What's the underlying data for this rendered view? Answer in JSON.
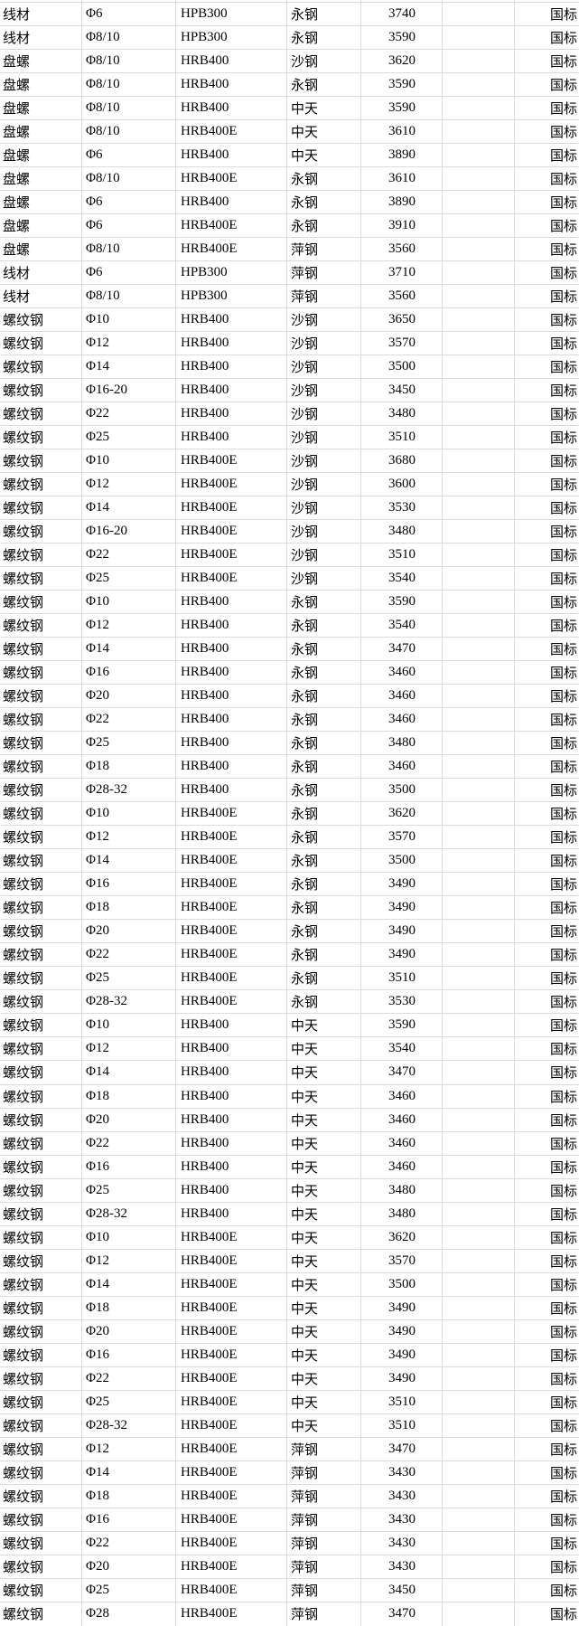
{
  "colors": {
    "background": "#ffffff",
    "gridline": "#dcdcdc",
    "text": "#000000"
  },
  "table": {
    "rows": [
      [
        "线材",
        "Φ6",
        "HPB300",
        "永钢",
        "3740",
        "",
        "国标"
      ],
      [
        "线材",
        "Φ8/10",
        "HPB300",
        "永钢",
        "3590",
        "",
        "国标"
      ],
      [
        "盘螺",
        "Φ8/10",
        "HRB400",
        "沙钢",
        "3620",
        "",
        "国标"
      ],
      [
        "盘螺",
        "Φ8/10",
        "HRB400",
        "永钢",
        "3590",
        "",
        "国标"
      ],
      [
        "盘螺",
        "Φ8/10",
        "HRB400",
        "中天",
        "3590",
        "",
        "国标"
      ],
      [
        "盘螺",
        "Φ8/10",
        "HRB400E",
        "中天",
        "3610",
        "",
        "国标"
      ],
      [
        "盘螺",
        "Φ6",
        "HRB400",
        "中天",
        "3890",
        "",
        "国标"
      ],
      [
        "盘螺",
        "Φ8/10",
        "HRB400E",
        "永钢",
        "3610",
        "",
        "国标"
      ],
      [
        "盘螺",
        "Φ6",
        "HRB400",
        "永钢",
        "3890",
        "",
        "国标"
      ],
      [
        "盘螺",
        "Φ6",
        "HRB400E",
        "永钢",
        "3910",
        "",
        "国标"
      ],
      [
        "盘螺",
        "Φ8/10",
        "HRB400E",
        "萍钢",
        "3560",
        "",
        "国标"
      ],
      [
        "线材",
        "Φ6",
        "HPB300",
        "萍钢",
        "3710",
        "",
        "国标"
      ],
      [
        "线材",
        "Φ8/10",
        "HPB300",
        "萍钢",
        "3560",
        "",
        "国标"
      ],
      [
        "螺纹钢",
        "Φ10",
        "HRB400",
        "沙钢",
        "3650",
        "",
        "国标"
      ],
      [
        "螺纹钢",
        "Φ12",
        "HRB400",
        "沙钢",
        "3570",
        "",
        "国标"
      ],
      [
        "螺纹钢",
        "Φ14",
        "HRB400",
        "沙钢",
        "3500",
        "",
        "国标"
      ],
      [
        "螺纹钢",
        "Φ16-20",
        "HRB400",
        "沙钢",
        "3450",
        "",
        "国标"
      ],
      [
        "螺纹钢",
        "Φ22",
        "HRB400",
        "沙钢",
        "3480",
        "",
        "国标"
      ],
      [
        "螺纹钢",
        "Φ25",
        "HRB400",
        "沙钢",
        "3510",
        "",
        "国标"
      ],
      [
        "螺纹钢",
        "Φ10",
        "HRB400E",
        "沙钢",
        "3680",
        "",
        "国标"
      ],
      [
        "螺纹钢",
        "Φ12",
        "HRB400E",
        "沙钢",
        "3600",
        "",
        "国标"
      ],
      [
        "螺纹钢",
        "Φ14",
        "HRB400E",
        "沙钢",
        "3530",
        "",
        "国标"
      ],
      [
        "螺纹钢",
        "Φ16-20",
        "HRB400E",
        "沙钢",
        "3480",
        "",
        "国标"
      ],
      [
        "螺纹钢",
        "Φ22",
        "HRB400E",
        "沙钢",
        "3510",
        "",
        "国标"
      ],
      [
        "螺纹钢",
        "Φ25",
        "HRB400E",
        "沙钢",
        "3540",
        "",
        "国标"
      ],
      [
        "螺纹钢",
        "Φ10",
        "HRB400",
        "永钢",
        "3590",
        "",
        "国标"
      ],
      [
        "螺纹钢",
        "Φ12",
        "HRB400",
        "永钢",
        "3540",
        "",
        "国标"
      ],
      [
        "螺纹钢",
        "Φ14",
        "HRB400",
        "永钢",
        "3470",
        "",
        "国标"
      ],
      [
        "螺纹钢",
        "Φ16",
        "HRB400",
        "永钢",
        "3460",
        "",
        "国标"
      ],
      [
        "螺纹钢",
        "Φ20",
        "HRB400",
        "永钢",
        "3460",
        "",
        "国标"
      ],
      [
        "螺纹钢",
        "Φ22",
        "HRB400",
        "永钢",
        "3460",
        "",
        "国标"
      ],
      [
        "螺纹钢",
        "Φ25",
        "HRB400",
        "永钢",
        "3480",
        "",
        "国标"
      ],
      [
        "螺纹钢",
        "Φ18",
        "HRB400",
        "永钢",
        "3460",
        "",
        "国标"
      ],
      [
        "螺纹钢",
        "Φ28-32",
        "HRB400",
        "永钢",
        "3500",
        "",
        "国标"
      ],
      [
        "螺纹钢",
        "Φ10",
        "HRB400E",
        "永钢",
        "3620",
        "",
        "国标"
      ],
      [
        "螺纹钢",
        "Φ12",
        "HRB400E",
        "永钢",
        "3570",
        "",
        "国标"
      ],
      [
        "螺纹钢",
        "Φ14",
        "HRB400E",
        "永钢",
        "3500",
        "",
        "国标"
      ],
      [
        "螺纹钢",
        "Φ16",
        "HRB400E",
        "永钢",
        "3490",
        "",
        "国标"
      ],
      [
        "螺纹钢",
        "Φ18",
        "HRB400E",
        "永钢",
        "3490",
        "",
        "国标"
      ],
      [
        "螺纹钢",
        "Φ20",
        "HRB400E",
        "永钢",
        "3490",
        "",
        "国标"
      ],
      [
        "螺纹钢",
        "Φ22",
        "HRB400E",
        "永钢",
        "3490",
        "",
        "国标"
      ],
      [
        "螺纹钢",
        "Φ25",
        "HRB400E",
        "永钢",
        "3510",
        "",
        "国标"
      ],
      [
        "螺纹钢",
        "Φ28-32",
        "HRB400E",
        "永钢",
        "3530",
        "",
        "国标"
      ],
      [
        "螺纹钢",
        "Φ10",
        "HRB400",
        "中天",
        "3590",
        "",
        "国标"
      ],
      [
        "螺纹钢",
        "Φ12",
        "HRB400",
        "中天",
        "3540",
        "",
        "国标"
      ],
      [
        "螺纹钢",
        "Φ14",
        "HRB400",
        "中天",
        "3470",
        "",
        "国标"
      ],
      [
        "螺纹钢",
        "Φ18",
        "HRB400",
        "中天",
        "3460",
        "",
        "国标"
      ],
      [
        "螺纹钢",
        "Φ20",
        "HRB400",
        "中天",
        "3460",
        "",
        "国标"
      ],
      [
        "螺纹钢",
        "Φ22",
        "HRB400",
        "中天",
        "3460",
        "",
        "国标"
      ],
      [
        "螺纹钢",
        "Φ16",
        "HRB400",
        "中天",
        "3460",
        "",
        "国标"
      ],
      [
        "螺纹钢",
        "Φ25",
        "HRB400",
        "中天",
        "3480",
        "",
        "国标"
      ],
      [
        "螺纹钢",
        "Φ28-32",
        "HRB400",
        "中天",
        "3480",
        "",
        "国标"
      ],
      [
        "螺纹钢",
        "Φ10",
        "HRB400E",
        "中天",
        "3620",
        "",
        "国标"
      ],
      [
        "螺纹钢",
        "Φ12",
        "HRB400E",
        "中天",
        "3570",
        "",
        "国标"
      ],
      [
        "螺纹钢",
        "Φ14",
        "HRB400E",
        "中天",
        "3500",
        "",
        "国标"
      ],
      [
        "螺纹钢",
        "Φ18",
        "HRB400E",
        "中天",
        "3490",
        "",
        "国标"
      ],
      [
        "螺纹钢",
        "Φ20",
        "HRB400E",
        "中天",
        "3490",
        "",
        "国标"
      ],
      [
        "螺纹钢",
        "Φ16",
        "HRB400E",
        "中天",
        "3490",
        "",
        "国标"
      ],
      [
        "螺纹钢",
        "Φ22",
        "HRB400E",
        "中天",
        "3490",
        "",
        "国标"
      ],
      [
        "螺纹钢",
        "Φ25",
        "HRB400E",
        "中天",
        "3510",
        "",
        "国标"
      ],
      [
        "螺纹钢",
        "Φ28-32",
        "HRB400E",
        "中天",
        "3510",
        "",
        "国标"
      ],
      [
        "螺纹钢",
        "Φ12",
        "HRB400E",
        "萍钢",
        "3470",
        "",
        "国标"
      ],
      [
        "螺纹钢",
        "Φ14",
        "HRB400E",
        "萍钢",
        "3430",
        "",
        "国标"
      ],
      [
        "螺纹钢",
        "Φ18",
        "HRB400E",
        "萍钢",
        "3430",
        "",
        "国标"
      ],
      [
        "螺纹钢",
        "Φ16",
        "HRB400E",
        "萍钢",
        "3430",
        "",
        "国标"
      ],
      [
        "螺纹钢",
        "Φ22",
        "HRB400E",
        "萍钢",
        "3430",
        "",
        "国标"
      ],
      [
        "螺纹钢",
        "Φ20",
        "HRB400E",
        "萍钢",
        "3430",
        "",
        "国标"
      ],
      [
        "螺纹钢",
        "Φ25",
        "HRB400E",
        "萍钢",
        "3450",
        "",
        "国标"
      ],
      [
        "螺纹钢",
        "Φ28",
        "HRB400E",
        "萍钢",
        "3470",
        "",
        "国标"
      ]
    ]
  }
}
